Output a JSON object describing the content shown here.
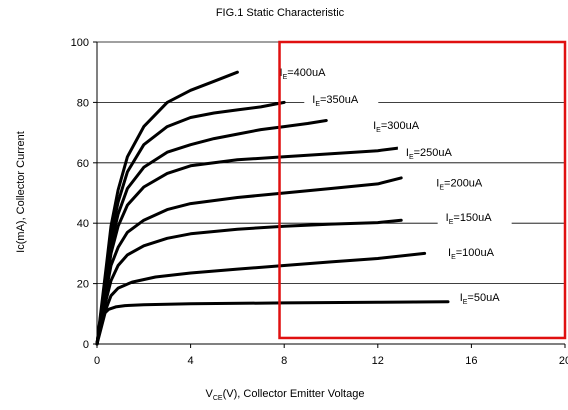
{
  "chart_data": {
    "type": "line",
    "title": "FIG.1 Static Characteristic",
    "xlabel": {
      "main": "V",
      "sub": "CE",
      "rest": "(V), Collector Emitter Voltage"
    },
    "ylabel": "Ic(mA), Collector  Current",
    "xlim": [
      0,
      20
    ],
    "ylim": [
      0,
      100
    ],
    "xticks": [
      0,
      4,
      8,
      12,
      16,
      20
    ],
    "yticks": [
      0,
      20,
      40,
      60,
      80,
      100
    ],
    "grid": "horizontal",
    "highlight_box": {
      "x": [
        7.8,
        20
      ],
      "y": [
        2,
        100
      ],
      "color": "#e01010"
    },
    "series": [
      {
        "name": {
          "main": "I",
          "sub": "E",
          "rest": "=50uA"
        },
        "points": [
          [
            0,
            0
          ],
          [
            0.1,
            4
          ],
          [
            0.2,
            8
          ],
          [
            0.3,
            10
          ],
          [
            0.5,
            11.5
          ],
          [
            0.8,
            12.3
          ],
          [
            1.2,
            12.7
          ],
          [
            2,
            13
          ],
          [
            4,
            13.3
          ],
          [
            8,
            13.6
          ],
          [
            12,
            13.8
          ],
          [
            15,
            14
          ]
        ],
        "label_at": [
          15.5,
          14.3
        ]
      },
      {
        "name": {
          "main": "I",
          "sub": "E",
          "rest": "=100uA"
        },
        "points": [
          [
            0,
            0
          ],
          [
            0.2,
            6
          ],
          [
            0.4,
            12
          ],
          [
            0.6,
            16
          ],
          [
            0.9,
            18.5
          ],
          [
            1.5,
            20.5
          ],
          [
            2.5,
            22.2
          ],
          [
            4,
            23.5
          ],
          [
            6,
            24.8
          ],
          [
            8,
            26
          ],
          [
            10,
            27.2
          ],
          [
            12,
            28.3
          ],
          [
            14,
            30
          ]
        ],
        "label_at": [
          15,
          29.2
        ]
      },
      {
        "name": {
          "main": "I",
          "sub": "E",
          "rest": "=150uA"
        },
        "points": [
          [
            0,
            0
          ],
          [
            0.2,
            8
          ],
          [
            0.4,
            15
          ],
          [
            0.6,
            21
          ],
          [
            0.9,
            26
          ],
          [
            1.3,
            29.5
          ],
          [
            2,
            32.5
          ],
          [
            3,
            35
          ],
          [
            4,
            36.5
          ],
          [
            6,
            38
          ],
          [
            8,
            39
          ],
          [
            10,
            39.7
          ],
          [
            12,
            40.2
          ],
          [
            13,
            41
          ]
        ],
        "label_at": [
          14.9,
          40.8
        ]
      },
      {
        "name": {
          "main": "I",
          "sub": "E",
          "rest": "=200uA"
        },
        "points": [
          [
            0,
            0
          ],
          [
            0.2,
            9
          ],
          [
            0.4,
            18
          ],
          [
            0.6,
            26
          ],
          [
            0.9,
            32
          ],
          [
            1.3,
            37
          ],
          [
            2,
            41
          ],
          [
            3,
            44.5
          ],
          [
            4,
            46.5
          ],
          [
            6,
            48.5
          ],
          [
            8,
            50
          ],
          [
            10,
            51.5
          ],
          [
            12,
            53
          ],
          [
            13,
            55
          ]
        ],
        "label_at": [
          14.5,
          52.2
        ]
      },
      {
        "name": {
          "main": "I",
          "sub": "E",
          "rest": "=250uA"
        },
        "points": [
          [
            0,
            0
          ],
          [
            0.2,
            10
          ],
          [
            0.4,
            20
          ],
          [
            0.6,
            30
          ],
          [
            0.9,
            39
          ],
          [
            1.3,
            46
          ],
          [
            2,
            52
          ],
          [
            3,
            56.5
          ],
          [
            4,
            59
          ],
          [
            6,
            61
          ],
          [
            8,
            62
          ],
          [
            10,
            63
          ],
          [
            12,
            64
          ],
          [
            13,
            65
          ]
        ],
        "label_at": [
          13.2,
          62.3
        ]
      },
      {
        "name": {
          "main": "I",
          "sub": "E",
          "rest": "=300uA"
        },
        "points": [
          [
            0,
            0
          ],
          [
            0.2,
            11
          ],
          [
            0.4,
            22
          ],
          [
            0.6,
            33
          ],
          [
            0.9,
            43
          ],
          [
            1.3,
            51.5
          ],
          [
            2,
            58.5
          ],
          [
            3,
            63.5
          ],
          [
            4,
            66
          ],
          [
            5,
            68
          ],
          [
            6,
            69.5
          ],
          [
            7,
            71
          ],
          [
            8,
            72
          ],
          [
            9,
            73
          ],
          [
            9.8,
            74
          ]
        ],
        "label_at": [
          11.8,
          71.2
        ]
      },
      {
        "name": {
          "main": "I",
          "sub": "E",
          "rest": "=350uA"
        },
        "points": [
          [
            0,
            0
          ],
          [
            0.2,
            12
          ],
          [
            0.4,
            24
          ],
          [
            0.6,
            36
          ],
          [
            0.9,
            47
          ],
          [
            1.3,
            57
          ],
          [
            2,
            66
          ],
          [
            3,
            72
          ],
          [
            4,
            75
          ],
          [
            5,
            76.5
          ],
          [
            6,
            77.5
          ],
          [
            7,
            78.5
          ],
          [
            8,
            80
          ]
        ],
        "label_at": [
          9.2,
          79.8
        ]
      },
      {
        "name": {
          "main": "I",
          "sub": "E",
          "rest": "=400uA"
        },
        "points": [
          [
            0,
            0
          ],
          [
            0.2,
            13
          ],
          [
            0.4,
            26
          ],
          [
            0.6,
            39
          ],
          [
            0.9,
            51
          ],
          [
            1.3,
            62
          ],
          [
            2,
            72
          ],
          [
            3,
            80
          ],
          [
            4,
            84
          ],
          [
            5,
            87
          ],
          [
            6,
            90
          ]
        ],
        "label_at": [
          7.8,
          88.7
        ]
      }
    ]
  }
}
